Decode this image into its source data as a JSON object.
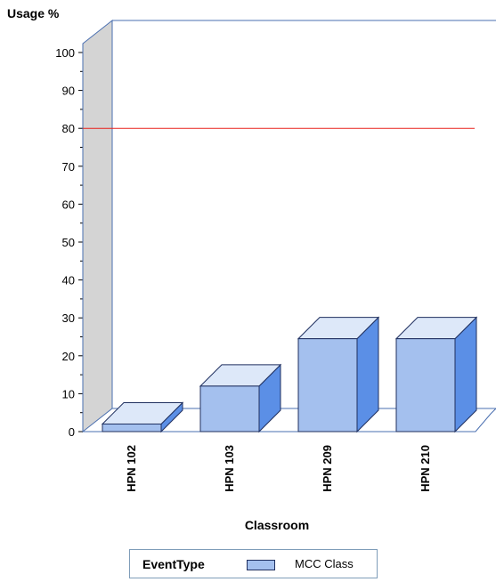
{
  "chart_data": {
    "type": "bar",
    "title": "",
    "ylabel": "Usage %",
    "xlabel": "Classroom",
    "categories": [
      "HPN 102",
      "HPN 103",
      "HPN 209",
      "HPN 210"
    ],
    "series": [
      {
        "name": "MCC Class",
        "values": [
          2,
          12,
          24.5,
          24.5
        ]
      }
    ],
    "ylim": [
      0,
      100
    ],
    "yticks": [
      "0",
      "10",
      "20",
      "30",
      "40",
      "50",
      "60",
      "70",
      "80",
      "90",
      "100"
    ],
    "reference_line": {
      "value": 80,
      "color": "#e8201b"
    },
    "grid": false,
    "three_d": true,
    "legend": {
      "title": "EventType",
      "placement": "bottom"
    },
    "colors": {
      "bar_front": "#a4c0ee",
      "bar_top": "#dde8f9",
      "bar_side": "#5b8fe6",
      "bar_outline": "#1f2f5f",
      "left_wall": "#d4d4d4",
      "frame": "#4a6fb0"
    }
  }
}
